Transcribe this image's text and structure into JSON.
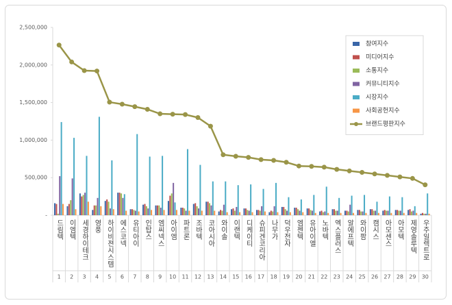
{
  "chart_data": {
    "type": "bar_line",
    "categories": [
      "드림텍",
      "이엠텍",
      "세경하이테크",
      "영풍",
      "하이비젼시스템",
      "에스코넥",
      "유티아이",
      "인탑스",
      "엠씨넥스",
      "아이엠",
      "파트론",
      "조바텍",
      "코아시아",
      "와이솔",
      "이랜텍",
      "디케이티",
      "슈피겐코리아",
      "나무가",
      "덕우전자",
      "엠젠텍",
      "유아이엘",
      "노바텍",
      "엑스플러스",
      "알에프텍",
      "와이팜",
      "캠시스",
      "아모센스",
      "아모텍",
      "제영솔루텍",
      "우주일렉트로"
    ],
    "category_numbers": [
      1,
      2,
      3,
      4,
      5,
      6,
      7,
      8,
      9,
      10,
      11,
      12,
      13,
      14,
      15,
      16,
      17,
      18,
      19,
      20,
      21,
      22,
      23,
      24,
      25,
      26,
      27,
      28,
      29,
      30
    ],
    "ylim": [
      0,
      2500000
    ],
    "yticks": [
      {
        "value": 0,
        "label": "-"
      },
      {
        "value": 500000,
        "label": "500,000"
      },
      {
        "value": 1000000,
        "label": "1,000,000"
      },
      {
        "value": 1500000,
        "label": "1,500,000"
      },
      {
        "value": 2000000,
        "label": "2,000,000"
      },
      {
        "value": 2500000,
        "label": "2,500,000"
      }
    ],
    "grid": false,
    "legend": "upper right",
    "series": [
      {
        "name": "참여지수",
        "color": "#3a66a8",
        "kind": "bar",
        "values": [
          160000,
          120000,
          290000,
          70000,
          190000,
          300000,
          80000,
          140000,
          130000,
          190000,
          100000,
          150000,
          180000,
          50000,
          80000,
          90000,
          70000,
          40000,
          110000,
          100000,
          90000,
          50000,
          80000,
          60000,
          70000,
          80000,
          60000,
          70000,
          70000,
          20000
        ]
      },
      {
        "name": "미디어지수",
        "color": "#c0504d",
        "kind": "bar",
        "values": [
          150000,
          150000,
          250000,
          130000,
          210000,
          300000,
          80000,
          150000,
          130000,
          260000,
          100000,
          160000,
          180000,
          70000,
          90000,
          90000,
          70000,
          60000,
          110000,
          100000,
          90000,
          60000,
          80000,
          60000,
          70000,
          80000,
          70000,
          70000,
          80000,
          30000
        ]
      },
      {
        "name": "소통지수",
        "color": "#9bbb59",
        "kind": "bar",
        "values": [
          20000,
          200000,
          270000,
          130000,
          180000,
          290000,
          70000,
          120000,
          130000,
          290000,
          90000,
          120000,
          160000,
          60000,
          60000,
          70000,
          60000,
          50000,
          80000,
          80000,
          70000,
          40000,
          60000,
          50000,
          50000,
          60000,
          60000,
          60000,
          50000,
          20000
        ]
      },
      {
        "name": "커뮤니티지수",
        "color": "#8064a2",
        "kind": "bar",
        "values": [
          520000,
          490000,
          300000,
          230000,
          90000,
          230000,
          60000,
          90000,
          100000,
          430000,
          60000,
          90000,
          130000,
          140000,
          110000,
          60000,
          120000,
          120000,
          60000,
          60000,
          60000,
          50000,
          60000,
          140000,
          50000,
          60000,
          60000,
          60000,
          60000,
          20000
        ]
      },
      {
        "name": "시장지수",
        "color": "#4bacc6",
        "kind": "bar",
        "values": [
          1240000,
          1030000,
          790000,
          1310000,
          730000,
          280000,
          1080000,
          780000,
          790000,
          170000,
          880000,
          670000,
          450000,
          450000,
          400000,
          410000,
          350000,
          430000,
          240000,
          210000,
          270000,
          380000,
          230000,
          260000,
          270000,
          180000,
          250000,
          240000,
          120000,
          290000
        ]
      },
      {
        "name": "사회공헌지수",
        "color": "#f79646",
        "kind": "bar",
        "values": [
          150000,
          80000,
          180000,
          120000,
          80000,
          60000,
          50000,
          70000,
          70000,
          70000,
          60000,
          60000,
          60000,
          40000,
          40000,
          40000,
          50000,
          40000,
          40000,
          40000,
          30000,
          30000,
          30000,
          30000,
          30000,
          30000,
          30000,
          30000,
          30000,
          20000
        ]
      },
      {
        "name": "브랜드평판지수",
        "color": "#9a9548",
        "kind": "line",
        "values": [
          2265000,
          2040000,
          1925000,
          1920000,
          1505000,
          1478000,
          1445000,
          1410000,
          1350000,
          1345000,
          1340000,
          1300000,
          1185000,
          805000,
          785000,
          770000,
          740000,
          730000,
          705000,
          655000,
          650000,
          640000,
          610000,
          590000,
          570000,
          550000,
          530000,
          510000,
          490000,
          405000
        ]
      }
    ]
  }
}
